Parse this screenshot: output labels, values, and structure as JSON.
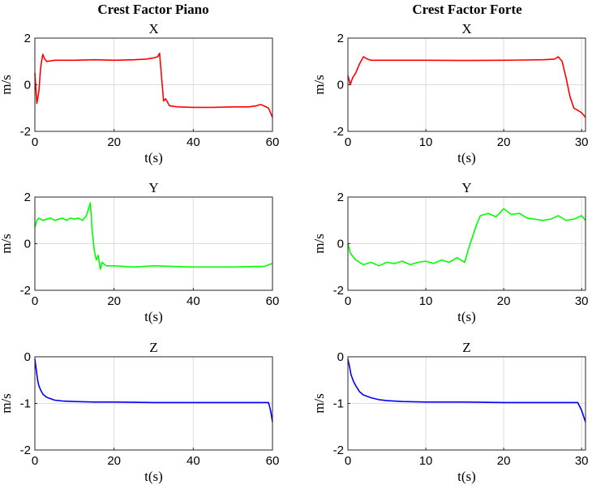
{
  "column_titles": [
    "Crest Factor Piano",
    "Crest Factor Forte"
  ],
  "chart_data": [
    {
      "type": "line",
      "title": "X",
      "xlabel": "t(s)",
      "ylabel": "m/s",
      "xlim": [
        0,
        60
      ],
      "ylim": [
        -2,
        2
      ],
      "xticks": [
        0,
        20,
        40,
        60
      ],
      "yticks": [
        -2,
        0,
        2
      ],
      "grid": true,
      "series": [
        {
          "color": "#ff0000",
          "x": [
            0,
            0.5,
            1,
            1.5,
            2,
            2.5,
            3,
            5,
            10,
            15,
            20,
            25,
            28,
            30,
            31,
            31.5,
            32,
            32.5,
            33,
            34,
            36,
            40,
            45,
            50,
            54,
            56,
            57,
            58,
            59,
            60
          ],
          "y": [
            0.5,
            -0.8,
            -0.3,
            0.8,
            1.3,
            1.1,
            1.0,
            1.05,
            1.05,
            1.07,
            1.05,
            1.07,
            1.1,
            1.15,
            1.2,
            1.35,
            0.3,
            -0.7,
            -0.6,
            -0.9,
            -0.95,
            -0.97,
            -0.97,
            -0.95,
            -0.95,
            -0.9,
            -0.85,
            -0.92,
            -1.0,
            -1.4
          ]
        }
      ]
    },
    {
      "type": "line",
      "title": "X",
      "xlabel": "t(s)",
      "ylabel": "m/s",
      "xlim": [
        0,
        30.5
      ],
      "ylim": [
        -2,
        2
      ],
      "xticks": [
        0,
        10,
        20,
        30
      ],
      "yticks": [
        -2,
        0,
        2
      ],
      "grid": true,
      "series": [
        {
          "color": "#ff0000",
          "x": [
            0,
            0.3,
            0.6,
            1,
            1.5,
            2,
            2.5,
            3,
            5,
            10,
            15,
            20,
            25,
            26.5,
            27,
            27.5,
            28,
            28.5,
            29,
            29.5,
            30,
            30.5
          ],
          "y": [
            0.4,
            0.0,
            0.3,
            0.5,
            0.9,
            1.2,
            1.1,
            1.05,
            1.05,
            1.05,
            1.04,
            1.05,
            1.07,
            1.1,
            1.2,
            1.0,
            0.3,
            -0.5,
            -1.0,
            -1.1,
            -1.2,
            -1.4
          ]
        }
      ]
    },
    {
      "type": "line",
      "title": "Y",
      "xlabel": "t(s)",
      "ylabel": "m/s",
      "xlim": [
        0,
        60
      ],
      "ylim": [
        -2,
        2
      ],
      "xticks": [
        0,
        20,
        40,
        60
      ],
      "yticks": [
        -2,
        0,
        2
      ],
      "grid": true,
      "series": [
        {
          "color": "#00ff00",
          "x": [
            0,
            0.5,
            1,
            2,
            3,
            4,
            5,
            6,
            7,
            8,
            9,
            10,
            11,
            12,
            13,
            14,
            14.5,
            15,
            15.5,
            16,
            16.5,
            17,
            18,
            20,
            25,
            30,
            40,
            50,
            55,
            58,
            60
          ],
          "y": [
            0.7,
            1.0,
            1.1,
            1.0,
            1.05,
            1.1,
            1.0,
            1.05,
            1.1,
            1.0,
            1.1,
            1.05,
            1.1,
            1.0,
            1.2,
            1.75,
            0.5,
            -0.3,
            -0.7,
            -0.5,
            -1.1,
            -0.8,
            -0.95,
            -0.95,
            -1.0,
            -0.95,
            -1.0,
            -1.0,
            -0.98,
            -0.97,
            -0.85
          ]
        }
      ]
    },
    {
      "type": "line",
      "title": "Y",
      "xlabel": "t(s)",
      "ylabel": "m/s",
      "xlim": [
        0,
        30.5
      ],
      "ylim": [
        -2,
        2
      ],
      "xticks": [
        0,
        10,
        20,
        30
      ],
      "yticks": [
        -2,
        0,
        2
      ],
      "grid": true,
      "series": [
        {
          "color": "#00ff00",
          "x": [
            0,
            0.3,
            1,
            2,
            3,
            4,
            5,
            6,
            7,
            8,
            9,
            10,
            11,
            12,
            13,
            14,
            15,
            15.5,
            16,
            16.5,
            17,
            18,
            19,
            20,
            21,
            22,
            23,
            24,
            25,
            26,
            27,
            28,
            29,
            30,
            30.5
          ],
          "y": [
            0.0,
            -0.4,
            -0.7,
            -0.9,
            -0.8,
            -0.95,
            -0.8,
            -0.85,
            -0.75,
            -0.9,
            -0.8,
            -0.75,
            -0.85,
            -0.7,
            -0.8,
            -0.6,
            -0.8,
            -0.2,
            0.3,
            0.8,
            1.2,
            1.3,
            1.15,
            1.5,
            1.25,
            1.3,
            1.1,
            1.05,
            1.0,
            1.05,
            1.2,
            1.0,
            1.05,
            1.2,
            1.0
          ]
        }
      ]
    },
    {
      "type": "line",
      "title": "Z",
      "xlabel": "t(s)",
      "ylabel": "m/s",
      "xlim": [
        0,
        60
      ],
      "ylim": [
        -2,
        0
      ],
      "xticks": [
        0,
        20,
        40,
        60
      ],
      "yticks": [
        -2,
        -1,
        0
      ],
      "grid": true,
      "series": [
        {
          "color": "#0000ff",
          "x": [
            0,
            0.3,
            0.7,
            1,
            1.5,
            2,
            3,
            4,
            5,
            7,
            10,
            15,
            20,
            30,
            40,
            50,
            58,
            59,
            59.5,
            60
          ],
          "y": [
            -0.05,
            -0.25,
            -0.5,
            -0.62,
            -0.72,
            -0.8,
            -0.87,
            -0.9,
            -0.93,
            -0.95,
            -0.96,
            -0.97,
            -0.97,
            -0.98,
            -0.98,
            -0.98,
            -0.98,
            -0.98,
            -1.15,
            -1.4
          ]
        }
      ]
    },
    {
      "type": "line",
      "title": "Z",
      "xlabel": "t(s)",
      "ylabel": "m/s",
      "xlim": [
        0,
        30.5
      ],
      "ylim": [
        -2,
        0
      ],
      "xticks": [
        0,
        10,
        20,
        30
      ],
      "yticks": [
        -2,
        -1,
        0
      ],
      "grid": true,
      "series": [
        {
          "color": "#0000ff",
          "x": [
            0,
            0.2,
            0.4,
            0.7,
            1,
            1.5,
            2,
            3,
            4,
            5,
            7,
            10,
            15,
            20,
            25,
            29.5,
            30,
            30.5
          ],
          "y": [
            -0.05,
            -0.2,
            -0.38,
            -0.52,
            -0.62,
            -0.75,
            -0.82,
            -0.88,
            -0.92,
            -0.94,
            -0.96,
            -0.97,
            -0.97,
            -0.98,
            -0.98,
            -0.98,
            -1.15,
            -1.4
          ]
        }
      ]
    }
  ]
}
